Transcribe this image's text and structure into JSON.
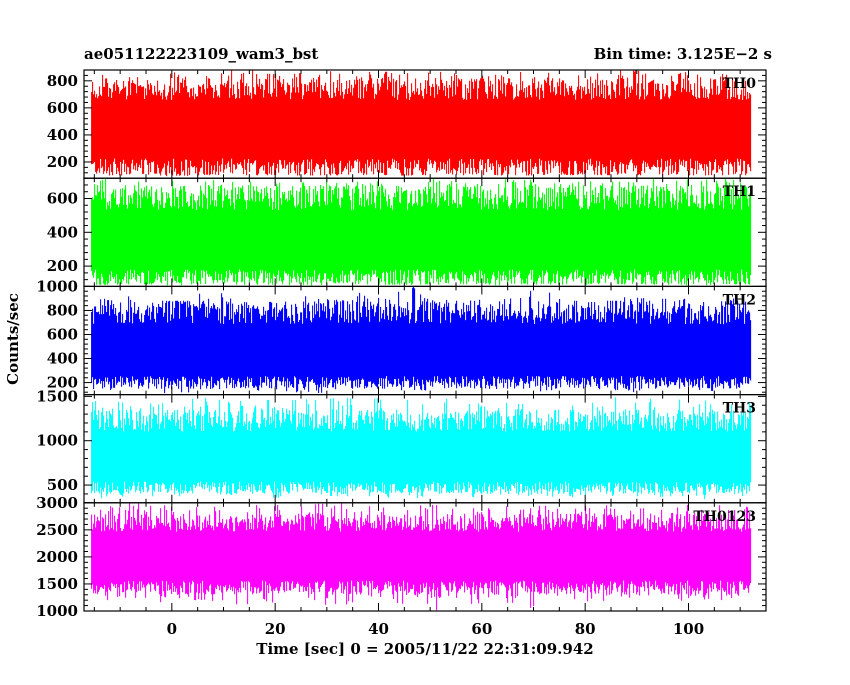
{
  "header": {
    "title": "ae051122223109_wam3_bst",
    "bin_time": "Bin time: 3.125E−2 s"
  },
  "chart_data": {
    "type": "line",
    "render": "histogram-step",
    "x": {
      "start": -15.625,
      "end": 112.0,
      "bin": 0.03125
    },
    "xlabel": "Time [sec] 0 = 2005/11/22 22:31:09.942",
    "ylabel": "Counts/sec",
    "xlim": [
      -17,
      115
    ],
    "xticks": [
      0,
      20,
      40,
      60,
      80,
      100
    ],
    "grid": false,
    "panels": [
      {
        "name": "TH0",
        "color": "#ff0000",
        "ylim": [
          80,
          880
        ],
        "yticks": [
          200,
          400,
          600,
          800
        ],
        "mean": 460,
        "typical_range": [
          100,
          820
        ],
        "envelope_low": [
          100,
          120,
          95,
          110,
          130,
          105,
          100,
          115,
          120,
          100,
          110,
          125,
          105,
          100,
          115,
          110,
          95,
          120,
          105,
          110
        ],
        "envelope_high": [
          860,
          880,
          870,
          860,
          880,
          875,
          860,
          880,
          870,
          865,
          880,
          860,
          875,
          880,
          860,
          870,
          880,
          865,
          875,
          860
        ]
      },
      {
        "name": "TH1",
        "color": "#00ff00",
        "ylim": [
          80,
          720
        ],
        "yticks": [
          200,
          400,
          600
        ],
        "mean": 350,
        "typical_range": [
          90,
          680
        ],
        "envelope_low": [
          90,
          100,
          85,
          95,
          110,
          90,
          85,
          100,
          95,
          90,
          105,
          95,
          85,
          100,
          90,
          95,
          100,
          90,
          85,
          95
        ],
        "envelope_high": [
          720,
          710,
          720,
          715,
          720,
          705,
          720,
          715,
          720,
          710,
          720,
          700,
          715,
          720,
          705,
          720,
          710,
          720,
          715,
          720
        ]
      },
      {
        "name": "TH2",
        "color": "#0000ff",
        "ylim": [
          100,
          1000
        ],
        "yticks": [
          200,
          400,
          600,
          800,
          1000
        ],
        "mean": 450,
        "typical_range": [
          150,
          880
        ],
        "envelope_low": [
          130,
          150,
          110,
          140,
          160,
          120,
          110,
          140,
          150,
          130,
          120,
          150,
          140,
          125,
          150,
          135,
          110,
          140,
          130,
          150
        ],
        "envelope_high": [
          900,
          920,
          880,
          950,
          900,
          870,
          920,
          900,
          960,
          1000,
          910,
          890,
          940,
          980,
          900,
          880,
          920,
          900,
          870,
          900
        ]
      },
      {
        "name": "TH3",
        "color": "#00ffff",
        "ylim": [
          300,
          1520
        ],
        "yticks": [
          500,
          1000,
          1500
        ],
        "mean": 800,
        "typical_range": [
          400,
          1350
        ],
        "envelope_low": [
          350,
          360,
          340,
          370,
          380,
          350,
          330,
          360,
          370,
          350,
          340,
          360,
          380,
          350,
          340,
          370,
          360,
          350,
          340,
          360
        ],
        "envelope_high": [
          1450,
          1500,
          1480,
          1510,
          1460,
          1500,
          1470,
          1490,
          1500,
          1460,
          1480,
          1510,
          1470,
          1490,
          1460,
          1500,
          1480,
          1470,
          1500,
          1460
        ]
      },
      {
        "name": "TH0123",
        "color": "#ff00ff",
        "ylim": [
          1000,
          3000
        ],
        "yticks": [
          1000,
          1500,
          2000,
          2500,
          3000
        ],
        "mean": 2050,
        "typical_range": [
          1300,
          2800
        ],
        "envelope_low": [
          1200,
          1220,
          1150,
          1180,
          1100,
          1080,
          1150,
          1100,
          1120,
          1050,
          1000,
          1100,
          1150,
          1050,
          1120,
          1100,
          1150,
          1180,
          1200,
          1150
        ],
        "envelope_high": [
          2950,
          3000,
          2980,
          2970,
          3000,
          2960,
          2990,
          3000,
          2980,
          2960,
          2990,
          3000,
          2970,
          2980,
          2960,
          2990,
          3000,
          2970,
          2980,
          2990
        ]
      }
    ]
  }
}
